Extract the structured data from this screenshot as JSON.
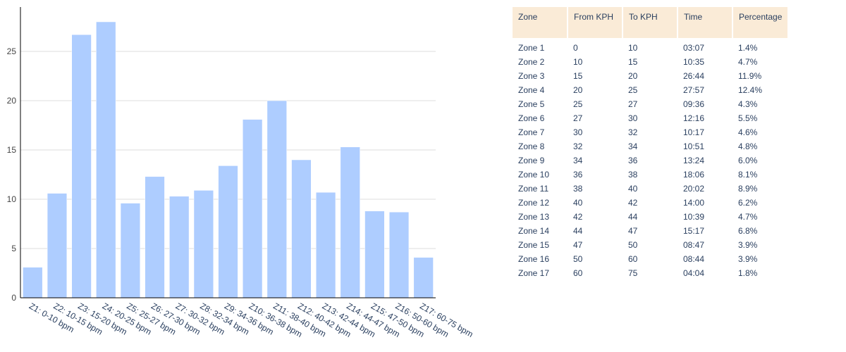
{
  "chart_data": {
    "type": "bar",
    "categories": [
      "Z1: 0-10 bpm",
      "Z2: 10-15 bpm",
      "Z3: 15-20 bpm",
      "Z4: 20-25 bpm",
      "Z5: 25-27 bpm",
      "Z6: 27-30 bpm",
      "Z7: 30-32 bpm",
      "Z8: 32-34 bpm",
      "Z9: 34-36 bpm",
      "Z10: 36-38 bpm",
      "Z11: 38-40 bpm",
      "Z12: 40-42 bpm",
      "Z13: 42-44 bpm",
      "Z14: 44-47 bpm",
      "Z15: 47-50 bpm",
      "Z16: 50-60 bpm",
      "Z17: 60-75 bpm"
    ],
    "values": [
      3.1,
      10.6,
      26.7,
      28.0,
      9.6,
      12.3,
      10.3,
      10.9,
      13.4,
      18.1,
      20.0,
      14.0,
      10.7,
      15.3,
      8.8,
      8.7,
      4.1
    ],
    "yticks": [
      0,
      5,
      10,
      15,
      20,
      25
    ],
    "ylim": [
      0,
      29.5
    ],
    "grid": true,
    "bar_color": "#aecdff",
    "title": "",
    "xlabel": "",
    "ylabel": ""
  },
  "table": {
    "header_color": "#faebd7",
    "columns": [
      "Zone",
      "From KPH",
      "To KPH",
      "Time",
      "Percentage"
    ],
    "rows": [
      [
        "Zone 1",
        "0",
        "10",
        "03:07",
        "1.4%"
      ],
      [
        "Zone 2",
        "10",
        "15",
        "10:35",
        "4.7%"
      ],
      [
        "Zone 3",
        "15",
        "20",
        "26:44",
        "11.9%"
      ],
      [
        "Zone 4",
        "20",
        "25",
        "27:57",
        "12.4%"
      ],
      [
        "Zone 5",
        "25",
        "27",
        "09:36",
        "4.3%"
      ],
      [
        "Zone 6",
        "27",
        "30",
        "12:16",
        "5.5%"
      ],
      [
        "Zone 7",
        "30",
        "32",
        "10:17",
        "4.6%"
      ],
      [
        "Zone 8",
        "32",
        "34",
        "10:51",
        "4.8%"
      ],
      [
        "Zone 9",
        "34",
        "36",
        "13:24",
        "6.0%"
      ],
      [
        "Zone 10",
        "36",
        "38",
        "18:06",
        "8.1%"
      ],
      [
        "Zone 11",
        "38",
        "40",
        "20:02",
        "8.9%"
      ],
      [
        "Zone 12",
        "40",
        "42",
        "14:00",
        "6.2%"
      ],
      [
        "Zone 13",
        "42",
        "44",
        "10:39",
        "4.7%"
      ],
      [
        "Zone 14",
        "44",
        "47",
        "15:17",
        "6.8%"
      ],
      [
        "Zone 15",
        "47",
        "50",
        "08:47",
        "3.9%"
      ],
      [
        "Zone 16",
        "50",
        "60",
        "08:44",
        "3.9%"
      ],
      [
        "Zone 17",
        "60",
        "75",
        "04:04",
        "1.8%"
      ]
    ]
  }
}
